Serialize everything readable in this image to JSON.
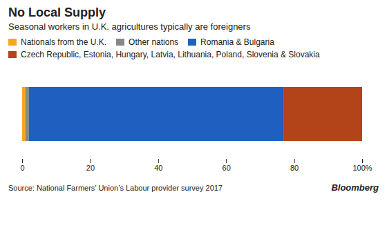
{
  "chart_data": {
    "type": "bar",
    "orientation": "horizontal",
    "stacked": true,
    "title": "No Local Supply",
    "subtitle": "Seasonal workers in U.K. agricultures typically are foreigners",
    "source": "Source: National Farmers’ Union’s Labour provider survey 2017",
    "annotations": [
      "Bloomberg"
    ],
    "categories": [
      null
    ],
    "series": [
      {
        "name": "Nationals from the U.K.",
        "color": "#f5a623",
        "values": [
          1
        ]
      },
      {
        "name": "Other nations",
        "color": "#888888",
        "values": [
          1
        ]
      },
      {
        "name": "Romania & Bulgaria",
        "color": "#1f5fc0",
        "values": [
          75
        ]
      },
      {
        "name": "Czech Republic, Estonia, Hungary, Latvia, Lithuania, Poland, Slovenia & Slovakia",
        "color": "#b34318",
        "values": [
          23
        ]
      }
    ],
    "xlim": [
      0,
      100
    ],
    "xticks": [
      0,
      20,
      40,
      60,
      80,
      {
        "value": 100,
        "label": "100%"
      }
    ],
    "legend": "upper left",
    "grid": false,
    "tick_labels": "x"
  }
}
